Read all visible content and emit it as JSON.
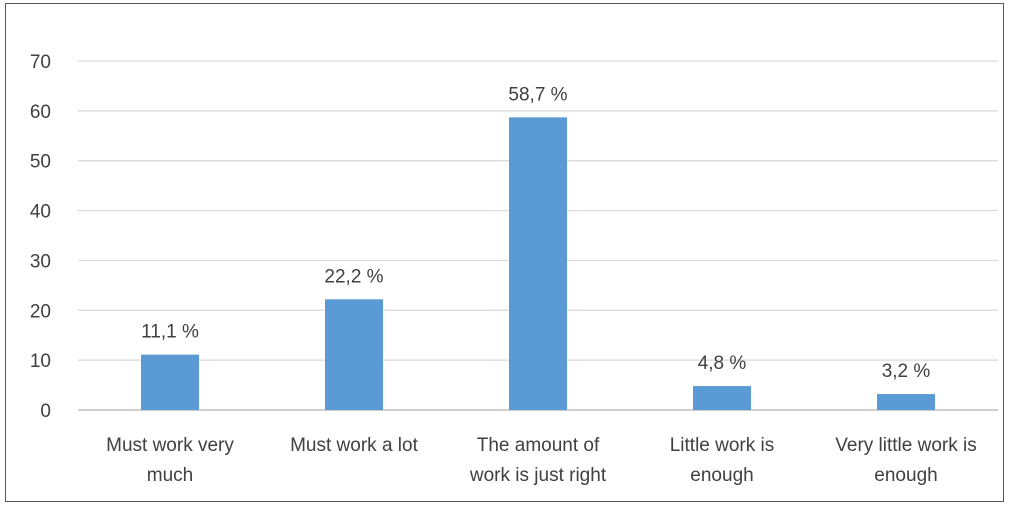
{
  "chart_data": {
    "type": "bar",
    "categories": [
      [
        "Must work very",
        "much"
      ],
      [
        "Must work a lot"
      ],
      [
        "The amount of",
        "work is just right"
      ],
      [
        "Little work is",
        "enough"
      ],
      [
        "Very little work is",
        "enough"
      ]
    ],
    "values": [
      11.1,
      22.2,
      58.7,
      4.8,
      3.2
    ],
    "data_labels": [
      "11,1 %",
      "22,2 %",
      "58,7 %",
      "4,8 %",
      "3,2 %"
    ],
    "y_ticks": [
      "0",
      "10",
      "20",
      "30",
      "40",
      "50",
      "60",
      "70"
    ],
    "ylim": [
      0,
      70
    ],
    "grid": true,
    "bar_color": "#5b9bd5",
    "grid_color": "#d9d9d9",
    "axis_color": "#bfbfbf",
    "title": "",
    "xlabel": "",
    "ylabel": ""
  }
}
